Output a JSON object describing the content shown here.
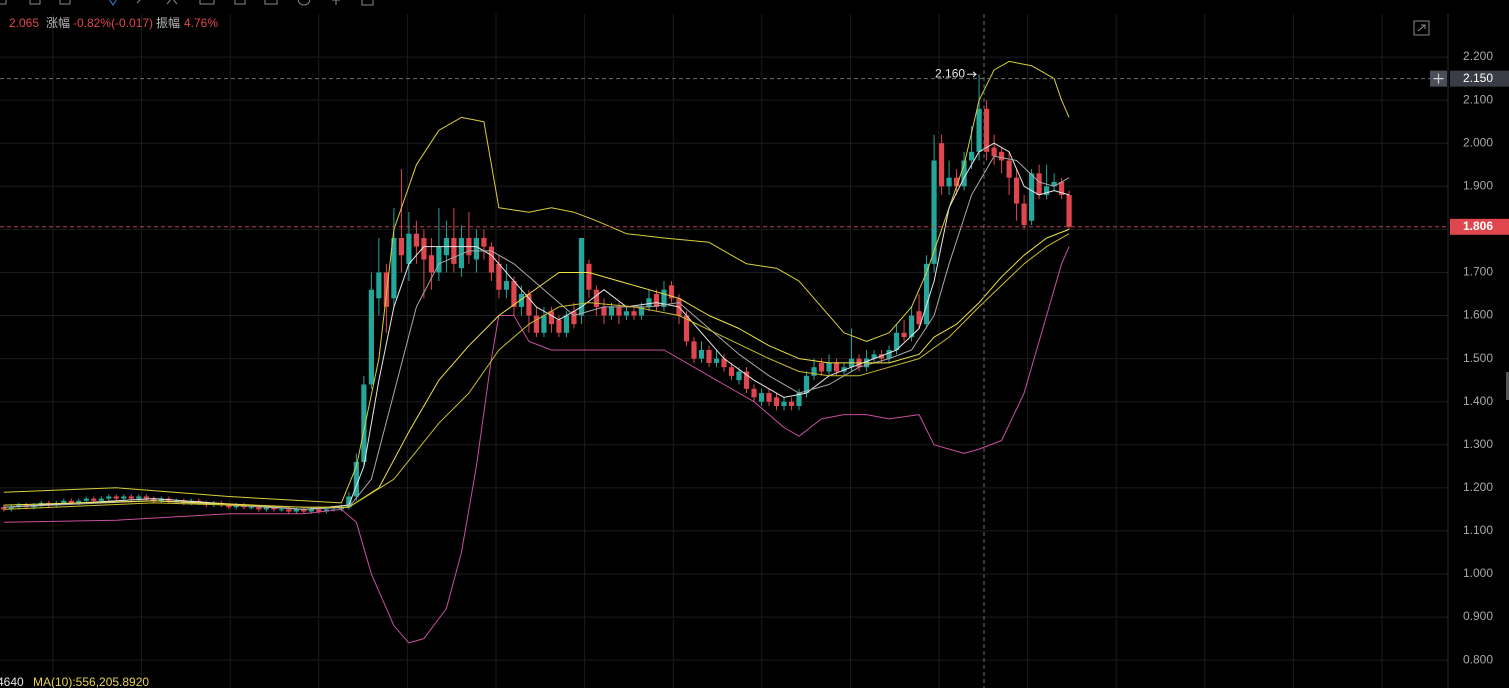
{
  "header": {
    "close": "2.065",
    "change_label": "涨幅",
    "change": "-0.82%(-0.017)",
    "amplitude_label": "振幅",
    "amplitude": "4.76%"
  },
  "footer": {
    "volume": "4640",
    "ma": "MA(10):556,205.8920"
  },
  "chart_data": {
    "type": "candlestick",
    "up_color": "#26a69a",
    "down_color": "#e0464e",
    "xlim": [
      -0.5,
      192.5
    ],
    "ylim": [
      0.74,
      2.3
    ],
    "grid": true,
    "yticks": [
      {
        "value": 0.8,
        "label": "0.800"
      },
      {
        "value": 0.9,
        "label": "0.900"
      },
      {
        "value": 1.0,
        "label": "1.000"
      },
      {
        "value": 1.1,
        "label": "1.100"
      },
      {
        "value": 1.2,
        "label": "1.200"
      },
      {
        "value": 1.3,
        "label": "1.300"
      },
      {
        "value": 1.4,
        "label": "1.400"
      },
      {
        "value": 1.5,
        "label": "1.500"
      },
      {
        "value": 1.6,
        "label": "1.600"
      },
      {
        "value": 1.7,
        "label": "1.700"
      },
      {
        "value": 1.8,
        "label": "1.800"
      },
      {
        "value": 1.9,
        "label": "1.900"
      },
      {
        "value": 2.0,
        "label": "2.000"
      },
      {
        "value": 2.1,
        "label": "2.100"
      },
      {
        "value": 2.2,
        "label": "2.200"
      }
    ],
    "open": [
      1.155,
      1.15,
      1.155,
      1.16,
      1.155,
      1.16,
      1.165,
      1.16,
      1.165,
      1.17,
      1.165,
      1.17,
      1.175,
      1.17,
      1.175,
      1.18,
      1.175,
      1.18,
      1.175,
      1.18,
      1.175,
      1.17,
      1.175,
      1.17,
      1.17,
      1.165,
      1.17,
      1.165,
      1.16,
      1.165,
      1.16,
      1.155,
      1.16,
      1.155,
      1.155,
      1.15,
      1.155,
      1.15,
      1.15,
      1.145,
      1.15,
      1.145,
      1.15,
      1.145,
      1.15,
      1.15,
      1.155,
      1.18,
      1.26,
      1.44,
      1.64,
      1.7,
      1.64,
      1.78,
      1.72,
      1.79,
      1.78,
      1.74,
      1.7,
      1.74,
      1.78,
      1.71,
      1.78,
      1.73,
      1.78,
      1.76,
      1.72,
      1.66,
      1.68,
      1.62,
      1.65,
      1.6,
      1.56,
      1.61,
      1.59,
      1.56,
      1.61,
      1.6,
      1.72,
      1.66,
      1.62,
      1.6,
      1.62,
      1.6,
      1.61,
      1.6,
      1.62,
      1.65,
      1.62,
      1.67,
      1.64,
      1.6,
      1.54,
      1.5,
      1.52,
      1.49,
      1.5,
      1.48,
      1.45,
      1.47,
      1.43,
      1.4,
      1.42,
      1.41,
      1.39,
      1.4,
      1.39,
      1.42,
      1.46,
      1.49,
      1.47,
      1.49,
      1.47,
      1.48,
      1.5,
      1.48,
      1.5,
      1.51,
      1.5,
      1.52,
      1.56,
      1.55,
      1.61,
      1.58,
      1.72,
      2.0,
      1.9,
      1.92,
      1.9,
      1.96,
      1.98,
      2.08,
      1.99,
      1.98,
      1.96,
      1.92,
      1.86,
      1.82,
      1.93,
      1.88,
      1.9,
      1.91,
      1.88
    ],
    "high": [
      1.16,
      1.16,
      1.165,
      1.165,
      1.165,
      1.17,
      1.17,
      1.17,
      1.175,
      1.175,
      1.175,
      1.18,
      1.18,
      1.18,
      1.185,
      1.185,
      1.185,
      1.185,
      1.185,
      1.185,
      1.18,
      1.18,
      1.18,
      1.175,
      1.175,
      1.175,
      1.175,
      1.17,
      1.17,
      1.17,
      1.165,
      1.165,
      1.165,
      1.16,
      1.16,
      1.16,
      1.16,
      1.155,
      1.155,
      1.155,
      1.155,
      1.155,
      1.155,
      1.155,
      1.155,
      1.16,
      1.19,
      1.28,
      1.46,
      1.7,
      1.78,
      1.72,
      1.85,
      1.94,
      1.84,
      1.82,
      1.8,
      1.78,
      1.85,
      1.82,
      1.85,
      1.81,
      1.84,
      1.8,
      1.8,
      1.77,
      1.74,
      1.72,
      1.69,
      1.67,
      1.66,
      1.62,
      1.62,
      1.62,
      1.6,
      1.61,
      1.63,
      1.78,
      1.73,
      1.67,
      1.64,
      1.63,
      1.63,
      1.62,
      1.62,
      1.63,
      1.66,
      1.66,
      1.68,
      1.68,
      1.65,
      1.61,
      1.55,
      1.54,
      1.53,
      1.52,
      1.51,
      1.49,
      1.48,
      1.48,
      1.44,
      1.43,
      1.43,
      1.42,
      1.41,
      1.41,
      1.43,
      1.47,
      1.5,
      1.5,
      1.51,
      1.5,
      1.49,
      1.57,
      1.51,
      1.52,
      1.52,
      1.52,
      1.53,
      1.58,
      1.59,
      1.62,
      1.65,
      1.74,
      2.02,
      2.02,
      1.96,
      1.94,
      1.98,
      2.04,
      2.16,
      2.1,
      2.02,
      1.99,
      1.98,
      1.94,
      1.88,
      1.94,
      1.95,
      1.95,
      1.93,
      1.92,
      1.89
    ],
    "low": [
      1.145,
      1.145,
      1.15,
      1.15,
      1.15,
      1.155,
      1.155,
      1.155,
      1.16,
      1.16,
      1.16,
      1.165,
      1.165,
      1.165,
      1.17,
      1.17,
      1.17,
      1.17,
      1.17,
      1.17,
      1.165,
      1.165,
      1.165,
      1.165,
      1.16,
      1.16,
      1.16,
      1.155,
      1.155,
      1.155,
      1.15,
      1.15,
      1.15,
      1.15,
      1.145,
      1.145,
      1.145,
      1.145,
      1.14,
      1.14,
      1.14,
      1.14,
      1.14,
      1.14,
      1.145,
      1.145,
      1.15,
      1.17,
      1.25,
      1.43,
      1.6,
      1.56,
      1.62,
      1.7,
      1.68,
      1.72,
      1.64,
      1.66,
      1.68,
      1.7,
      1.7,
      1.69,
      1.72,
      1.7,
      1.73,
      1.68,
      1.64,
      1.64,
      1.6,
      1.6,
      1.56,
      1.55,
      1.55,
      1.56,
      1.55,
      1.55,
      1.57,
      1.58,
      1.64,
      1.6,
      1.58,
      1.59,
      1.58,
      1.59,
      1.59,
      1.59,
      1.61,
      1.61,
      1.61,
      1.63,
      1.58,
      1.53,
      1.49,
      1.49,
      1.48,
      1.48,
      1.47,
      1.45,
      1.44,
      1.42,
      1.4,
      1.39,
      1.39,
      1.38,
      1.38,
      1.38,
      1.38,
      1.41,
      1.45,
      1.46,
      1.46,
      1.46,
      1.46,
      1.47,
      1.47,
      1.47,
      1.49,
      1.49,
      1.49,
      1.51,
      1.54,
      1.54,
      1.57,
      1.57,
      1.7,
      1.88,
      1.88,
      1.88,
      1.89,
      1.94,
      1.96,
      1.96,
      1.95,
      1.93,
      1.88,
      1.82,
      1.8,
      1.81,
      1.87,
      1.87,
      1.89,
      1.87,
      1.8
    ],
    "close": [
      1.15,
      1.155,
      1.16,
      1.155,
      1.16,
      1.165,
      1.16,
      1.165,
      1.17,
      1.165,
      1.17,
      1.175,
      1.17,
      1.175,
      1.18,
      1.175,
      1.18,
      1.175,
      1.18,
      1.175,
      1.17,
      1.175,
      1.17,
      1.17,
      1.165,
      1.17,
      1.165,
      1.16,
      1.165,
      1.16,
      1.155,
      1.16,
      1.155,
      1.155,
      1.15,
      1.155,
      1.15,
      1.15,
      1.145,
      1.15,
      1.145,
      1.15,
      1.145,
      1.15,
      1.15,
      1.155,
      1.18,
      1.26,
      1.44,
      1.66,
      1.7,
      1.62,
      1.78,
      1.74,
      1.79,
      1.76,
      1.73,
      1.7,
      1.76,
      1.78,
      1.72,
      1.78,
      1.74,
      1.78,
      1.76,
      1.7,
      1.66,
      1.68,
      1.62,
      1.65,
      1.6,
      1.56,
      1.6,
      1.58,
      1.56,
      1.6,
      1.58,
      1.78,
      1.66,
      1.62,
      1.6,
      1.62,
      1.6,
      1.61,
      1.6,
      1.62,
      1.64,
      1.62,
      1.66,
      1.64,
      1.6,
      1.54,
      1.5,
      1.52,
      1.49,
      1.5,
      1.48,
      1.46,
      1.47,
      1.43,
      1.41,
      1.42,
      1.4,
      1.39,
      1.4,
      1.39,
      1.42,
      1.46,
      1.48,
      1.47,
      1.49,
      1.47,
      1.48,
      1.5,
      1.48,
      1.5,
      1.51,
      1.5,
      1.52,
      1.56,
      1.55,
      1.6,
      1.58,
      1.72,
      1.96,
      1.9,
      1.92,
      1.9,
      1.96,
      1.98,
      2.08,
      1.98,
      1.97,
      1.96,
      1.92,
      1.86,
      1.81,
      1.93,
      1.88,
      1.9,
      1.91,
      1.88,
      1.806
    ],
    "series": [
      {
        "color": "#d9cf3a",
        "x": [
          0,
          15,
          30,
          40,
          45,
          47,
          50,
          52,
          55,
          58,
          61,
          64,
          66,
          70,
          73,
          76,
          79,
          83,
          88,
          94,
          96,
          99,
          103,
          106,
          109,
          112,
          115,
          118,
          121,
          123,
          125,
          128,
          130,
          132,
          134,
          137,
          140,
          141,
          142
        ],
        "values": [
          1.19,
          1.2,
          1.18,
          1.17,
          1.165,
          1.25,
          1.5,
          1.8,
          1.95,
          2.03,
          2.06,
          2.05,
          1.85,
          1.84,
          1.85,
          1.84,
          1.82,
          1.79,
          1.78,
          1.77,
          1.75,
          1.72,
          1.71,
          1.68,
          1.62,
          1.56,
          1.54,
          1.56,
          1.62,
          1.7,
          1.8,
          1.95,
          2.1,
          2.17,
          2.19,
          2.18,
          2.15,
          2.1,
          2.06
        ]
      },
      {
        "color": "#c8509e",
        "x": [
          0,
          15,
          30,
          40,
          45,
          47,
          49,
          52,
          54,
          56,
          59,
          61,
          63,
          65,
          66,
          68,
          70,
          73,
          80,
          88,
          92,
          96,
          100,
          104,
          106,
          109,
          112,
          115,
          118,
          122,
          124,
          126,
          128,
          130,
          133,
          136,
          139,
          141,
          142
        ],
        "values": [
          1.12,
          1.125,
          1.14,
          1.14,
          1.15,
          1.12,
          1.0,
          0.88,
          0.84,
          0.85,
          0.92,
          1.05,
          1.25,
          1.5,
          1.6,
          1.6,
          1.54,
          1.52,
          1.52,
          1.52,
          1.48,
          1.44,
          1.4,
          1.34,
          1.32,
          1.36,
          1.37,
          1.37,
          1.36,
          1.37,
          1.3,
          1.29,
          1.28,
          1.29,
          1.31,
          1.42,
          1.6,
          1.72,
          1.76
        ]
      },
      {
        "color": "#e8e8e8",
        "x": [
          0,
          20,
          40,
          46,
          48,
          50,
          52,
          54,
          56,
          60,
          63,
          65,
          68,
          71,
          74,
          77,
          80,
          83,
          87,
          90,
          93,
          96,
          100,
          104,
          107,
          110,
          113,
          116,
          119,
          122,
          124,
          126,
          128,
          130,
          132,
          134,
          136,
          138,
          140,
          142
        ],
        "values": [
          1.155,
          1.175,
          1.15,
          1.16,
          1.25,
          1.45,
          1.62,
          1.72,
          1.76,
          1.76,
          1.76,
          1.74,
          1.68,
          1.62,
          1.59,
          1.62,
          1.66,
          1.62,
          1.63,
          1.62,
          1.56,
          1.5,
          1.45,
          1.41,
          1.42,
          1.46,
          1.48,
          1.5,
          1.52,
          1.57,
          1.68,
          1.85,
          1.92,
          1.98,
          2.0,
          1.98,
          1.9,
          1.88,
          1.89,
          1.88
        ]
      },
      {
        "color": "#a9a9a9",
        "x": [
          0,
          20,
          40,
          46,
          49,
          52,
          55,
          58,
          62,
          65,
          68,
          72,
          76,
          80,
          86,
          90,
          94,
          98,
          102,
          106,
          110,
          114,
          118,
          121,
          124,
          126,
          129,
          132,
          135,
          138,
          140,
          142
        ],
        "values": [
          1.155,
          1.17,
          1.15,
          1.155,
          1.22,
          1.42,
          1.62,
          1.72,
          1.75,
          1.75,
          1.72,
          1.66,
          1.6,
          1.62,
          1.62,
          1.63,
          1.57,
          1.51,
          1.46,
          1.42,
          1.44,
          1.48,
          1.5,
          1.52,
          1.6,
          1.72,
          1.88,
          1.97,
          1.96,
          1.91,
          1.9,
          1.92
        ]
      },
      {
        "color": "#f0e34a",
        "x": [
          0,
          20,
          40,
          46,
          50,
          54,
          58,
          62,
          66,
          70,
          74,
          78,
          82,
          86,
          90,
          94,
          98,
          102,
          106,
          110,
          114,
          118,
          122,
          124,
          127,
          130,
          133,
          136,
          139,
          142
        ],
        "values": [
          1.16,
          1.17,
          1.155,
          1.155,
          1.2,
          1.33,
          1.45,
          1.53,
          1.6,
          1.65,
          1.7,
          1.7,
          1.68,
          1.66,
          1.64,
          1.6,
          1.57,
          1.53,
          1.5,
          1.49,
          1.49,
          1.49,
          1.51,
          1.55,
          1.58,
          1.63,
          1.69,
          1.74,
          1.78,
          1.8
        ]
      },
      {
        "color": "#c9bf2e",
        "x": [
          0,
          20,
          40,
          46,
          52,
          58,
          62,
          66,
          70,
          74,
          78,
          84,
          90,
          96,
          102,
          106,
          110,
          114,
          118,
          122,
          126,
          130,
          133,
          136,
          139,
          142
        ],
        "values": [
          1.15,
          1.165,
          1.155,
          1.155,
          1.22,
          1.35,
          1.42,
          1.52,
          1.58,
          1.62,
          1.63,
          1.62,
          1.6,
          1.55,
          1.5,
          1.47,
          1.46,
          1.46,
          1.48,
          1.5,
          1.55,
          1.62,
          1.67,
          1.72,
          1.76,
          1.79
        ]
      }
    ],
    "max_marker": {
      "value": 2.16,
      "label": "2.160"
    },
    "crosshair": {
      "value": 2.15,
      "label": "2.150"
    },
    "last_price": {
      "value": 1.806,
      "label": "1.806"
    }
  }
}
